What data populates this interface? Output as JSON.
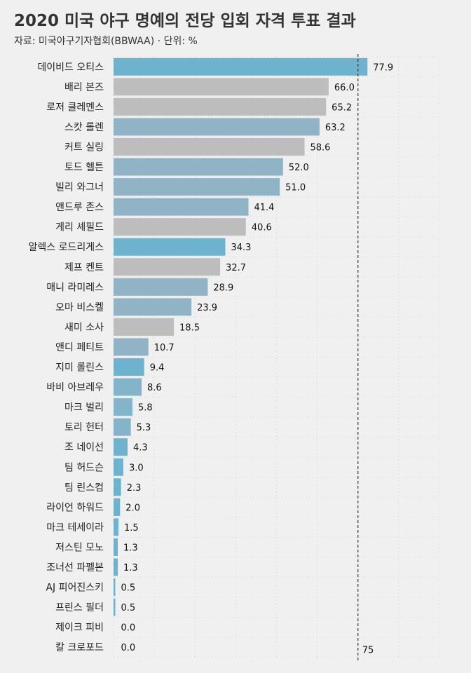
{
  "title": "2020 미국 야구 명예의 전당 입회 자격 투표 결과",
  "subtitle": "자료: 미국야구기자협회(BBWAA) · 단위: %",
  "colors": {
    "blue": "#6db3ce",
    "grey": "#bdbdbd",
    "blue_grey": "#90b4c6",
    "mid_blue": "#84b4c9"
  },
  "chart_data": {
    "type": "bar",
    "orientation": "horizontal",
    "xlim": [
      0,
      100
    ],
    "grid": true,
    "reference_line": {
      "value": 75,
      "label": "75",
      "style": "dashed"
    },
    "categories": [
      "데이비드 오티스",
      "배리 본즈",
      "로저 클레멘스",
      "스캇 롤렌",
      "커트 실링",
      "토드 헬튼",
      "빌리 와그너",
      "앤드루 존스",
      "게리 셰필드",
      "알렉스 로드리게스",
      "제프 켄트",
      "매니 라미레스",
      "오마 비스켈",
      "새미 소사",
      "앤디 페티트",
      "지미 롤린스",
      "바비 아브레우",
      "마크 벌리",
      "토리 헌터",
      "조 네이선",
      "팀 허드슨",
      "팀 린스컴",
      "라이언 하워드",
      "마크 테세이라",
      "저스틴 모노",
      "조너선 파펠본",
      "AJ 피어진스키",
      "프린스 필더",
      "제이크 피비",
      "칼 크로포드"
    ],
    "values": [
      77.9,
      66.0,
      65.2,
      63.2,
      58.6,
      52.0,
      51.0,
      41.4,
      40.6,
      34.3,
      32.7,
      28.9,
      23.9,
      18.5,
      10.7,
      9.4,
      8.6,
      5.8,
      5.3,
      4.3,
      3.0,
      2.3,
      2.0,
      1.5,
      1.3,
      1.3,
      0.5,
      0.5,
      0.0,
      0.0
    ],
    "value_labels": [
      "77.9",
      "66.0",
      "65.2",
      "63.2",
      "58.6",
      "52.0",
      "51.0",
      "41.4",
      "40.6",
      "34.3",
      "32.7",
      "28.9",
      "23.9",
      "18.5",
      "10.7",
      "9.4",
      "8.6",
      "5.8",
      "5.3",
      "4.3",
      "3.0",
      "2.3",
      "2.0",
      "1.5",
      "1.3",
      "1.3",
      "0.5",
      "0.5",
      "0.0",
      "0.0"
    ],
    "bar_colors": [
      "blue",
      "grey",
      "grey",
      "blue_grey",
      "grey",
      "blue_grey",
      "blue_grey",
      "blue_grey",
      "grey",
      "blue",
      "grey",
      "blue_grey",
      "blue_grey",
      "grey",
      "blue_grey",
      "blue",
      "mid_blue",
      "mid_blue",
      "mid_blue",
      "blue",
      "blue",
      "blue",
      "blue",
      "blue",
      "blue",
      "blue",
      "blue",
      "blue",
      "blue",
      "blue"
    ]
  }
}
